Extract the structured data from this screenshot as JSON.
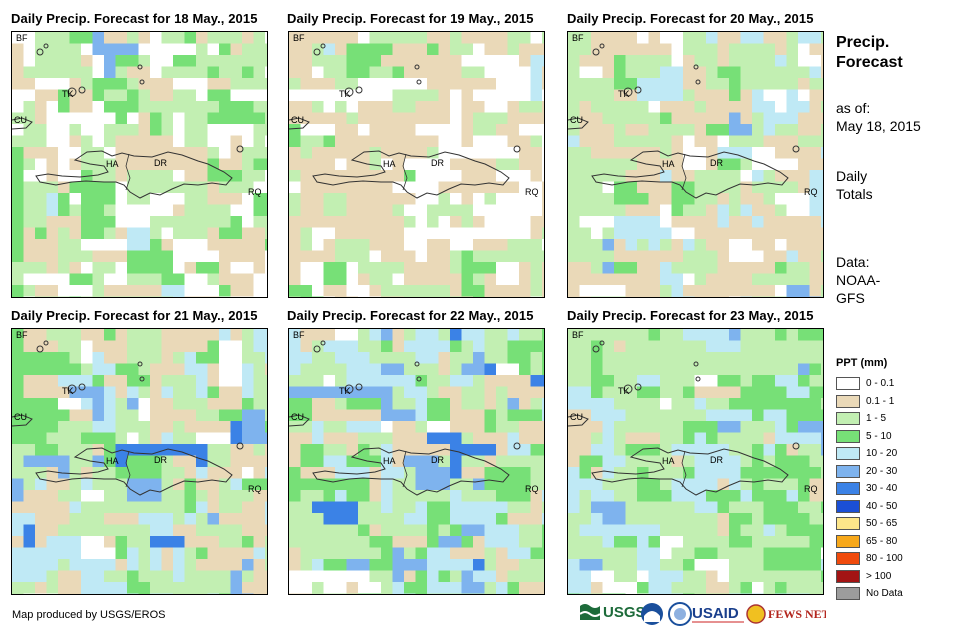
{
  "panels": [
    {
      "title": "Daily Precip. Forecast for 18 May., 2015"
    },
    {
      "title": "Daily Precip. Forecast for 19 May., 2015"
    },
    {
      "title": "Daily Precip. Forecast for 20 May., 2015"
    },
    {
      "title": "Daily Precip. Forecast for 21 May., 2015"
    },
    {
      "title": "Daily Precip. Forecast for 22 May., 2015"
    },
    {
      "title": "Daily Precip. Forecast for 23 May., 2015"
    }
  ],
  "place_labels": {
    "bf": "BF",
    "tk": "TK",
    "cu": "CU",
    "ha": "HA",
    "dr": "DR",
    "rq": "RQ"
  },
  "sidebar": {
    "title_line1": "Precip.",
    "title_line2": "Forecast",
    "asof_line1": "as of:",
    "asof_line2": "May 18, 2015",
    "totals_line1": "Daily",
    "totals_line2": "Totals",
    "data_line1": "Data:",
    "data_line2": "NOAA-",
    "data_line3": "GFS"
  },
  "legend": {
    "title": "PPT (mm)",
    "items": [
      {
        "label": "0 - 0.1",
        "color": "#ffffff"
      },
      {
        "label": "0.1 - 1",
        "color": "#ead9b8"
      },
      {
        "label": "1 - 5",
        "color": "#c2efb2"
      },
      {
        "label": "5 - 10",
        "color": "#77e077"
      },
      {
        "label": "10 - 20",
        "color": "#bfe9f5"
      },
      {
        "label": "20 - 30",
        "color": "#7eb3ee"
      },
      {
        "label": "30 - 40",
        "color": "#3b82e6"
      },
      {
        "label": "40 - 50",
        "color": "#1b4fd6"
      },
      {
        "label": "50 - 65",
        "color": "#fde68a"
      },
      {
        "label": "65 - 80",
        "color": "#f7a81a"
      },
      {
        "label": "80 - 100",
        "color": "#f04a0c"
      },
      {
        "label": "> 100",
        "color": "#a31414"
      },
      {
        "label": "No Data",
        "color": "#9c9c9c"
      }
    ]
  },
  "credit": "Map produced by USGS/EROS",
  "logos": {
    "usgs": "USGS",
    "usaid": "USAID",
    "fewsnet": "FEWS NET"
  }
}
